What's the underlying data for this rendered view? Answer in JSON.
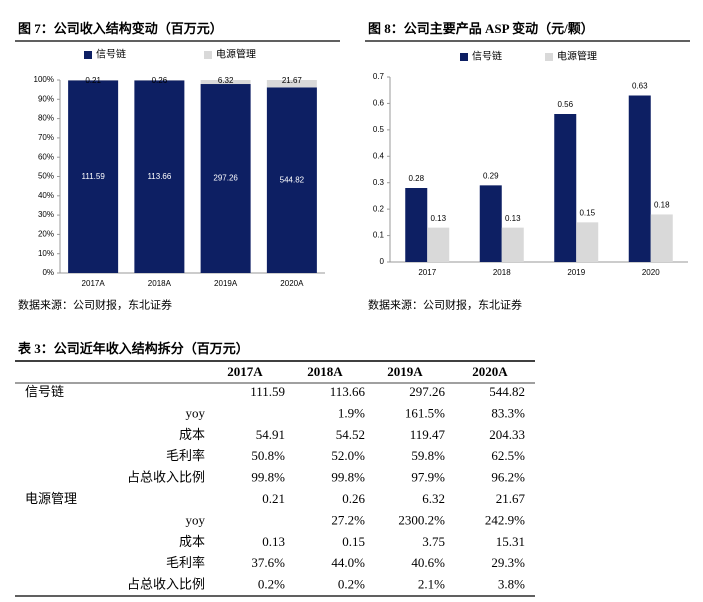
{
  "chart_data": [
    {
      "type": "bar",
      "stacked": "percent",
      "title": "图 7：公司收入结构变动（百万元）",
      "categories": [
        "2017A",
        "2018A",
        "2019A",
        "2020A"
      ],
      "series": [
        {
          "name": "信号链",
          "color": "#0d1f63",
          "values": [
            111.59,
            113.66,
            297.26,
            544.82
          ]
        },
        {
          "name": "电源管理",
          "color": "#d9d9d9",
          "values": [
            0.21,
            0.26,
            6.32,
            21.67
          ]
        }
      ],
      "ylim": [
        0,
        100
      ],
      "yticks": [
        {
          "value": 0,
          "label": "0%"
        },
        {
          "value": 10,
          "label": "10%"
        },
        {
          "value": 20,
          "label": "20%"
        },
        {
          "value": 30,
          "label": "30%"
        },
        {
          "value": 40,
          "label": "40%"
        },
        {
          "value": 50,
          "label": "50%"
        },
        {
          "value": 60,
          "label": "60%"
        },
        {
          "value": 70,
          "label": "70%"
        },
        {
          "value": 80,
          "label": "80%"
        },
        {
          "value": 90,
          "label": "90%"
        },
        {
          "value": 100,
          "label": "100%"
        }
      ],
      "source": "数据来源：公司财报，东北证券"
    },
    {
      "type": "bar",
      "title": "图 8：公司主要产品 ASP 变动（元/颗）",
      "categories": [
        "2017",
        "2018",
        "2019",
        "2020"
      ],
      "series": [
        {
          "name": "信号链",
          "color": "#0d1f63",
          "values": [
            0.28,
            0.29,
            0.56,
            0.63
          ]
        },
        {
          "name": "电源管理",
          "color": "#d9d9d9",
          "values": [
            0.13,
            0.13,
            0.15,
            0.18
          ]
        }
      ],
      "ylim": [
        0,
        0.7
      ],
      "yticks": [
        0,
        0.1,
        0.2,
        0.3,
        0.4,
        0.5,
        0.6,
        0.7
      ],
      "source": "数据来源：公司财报，东北证券"
    }
  ],
  "table": {
    "title": "表 3：公司近年收入结构拆分（百万元）",
    "header": [
      "2017A",
      "2018A",
      "2019A",
      "2020A"
    ],
    "rows": [
      [
        "信号链",
        "111.59",
        "113.66",
        "297.26",
        "544.82"
      ],
      [
        "yoy",
        null,
        "1.9%",
        "161.5%",
        "83.3%"
      ],
      [
        "成本",
        "54.91",
        "54.52",
        "119.47",
        "204.33"
      ],
      [
        "毛利率",
        "50.8%",
        "52.0%",
        "59.8%",
        "62.5%"
      ],
      [
        "占总收入比例",
        "99.8%",
        "99.8%",
        "97.9%",
        "96.2%"
      ],
      [
        "电源管理",
        "0.21",
        "0.26",
        "6.32",
        "21.67"
      ],
      [
        "yoy",
        null,
        "27.2%",
        "2300.2%",
        "242.9%"
      ],
      [
        "成本",
        "0.13",
        "0.15",
        "3.75",
        "15.31"
      ],
      [
        "毛利率",
        "37.6%",
        "44.0%",
        "40.6%",
        "29.3%"
      ],
      [
        "占总收入比例",
        "0.2%",
        "0.2%",
        "2.1%",
        "3.8%"
      ]
    ]
  }
}
